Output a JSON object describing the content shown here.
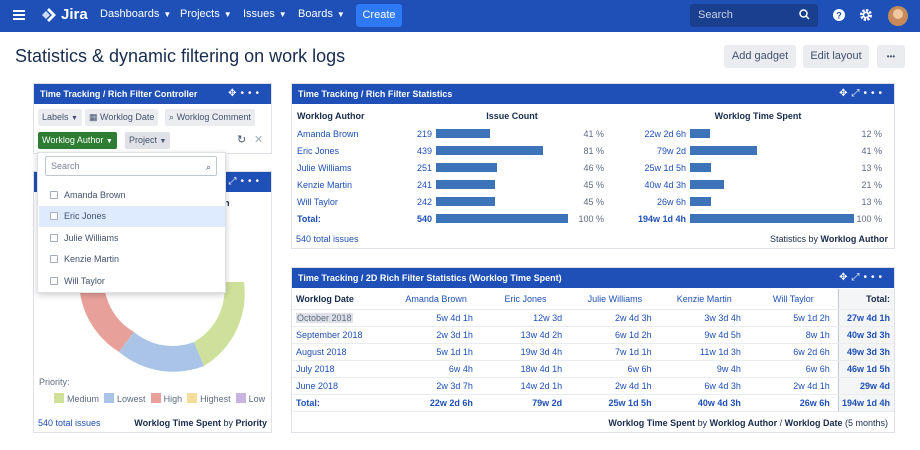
{
  "nav": {
    "logo_text": "Jira",
    "items": [
      {
        "label": "Dashboards"
      },
      {
        "label": "Projects"
      },
      {
        "label": "Issues"
      },
      {
        "label": "Boards"
      }
    ],
    "create_label": "Create",
    "search_placeholder": "Search"
  },
  "page": {
    "title": "Statistics & dynamic filtering on work logs",
    "add_gadget_label": "Add gadget",
    "edit_layout_label": "Edit layout",
    "more_label": "•••"
  },
  "controller": {
    "title": "Time Tracking / Rich Filter Controller",
    "chips": {
      "labels": "Labels",
      "worklog_date": "Worklog Date",
      "worklog_comment": "Worklog Comment",
      "worklog_author": "Worklog Author",
      "project": "Project"
    },
    "dropdown": {
      "search_placeholder": "Search",
      "items": [
        "Amanda Brown",
        "Eric Jones",
        "Julie Williams",
        "Kenzie Martin",
        "Will Taylor"
      ]
    }
  },
  "pie_gadget": {
    "header_fragment": "h",
    "legend_title": "Priority:",
    "legend": [
      {
        "label": "Medium",
        "color": "#cfe09a"
      },
      {
        "label": "Lowest",
        "color": "#a9c4e6"
      },
      {
        "label": "High",
        "color": "#e8a09a"
      },
      {
        "label": "Highest",
        "color": "#f5dc9a"
      },
      {
        "label": "Low",
        "color": "#c8b4e0"
      }
    ],
    "footer_left": "540 total issues",
    "footer_right_bold1": "Worklog Time Spent",
    "footer_right_by": " by ",
    "footer_right_bold2": "Priority"
  },
  "stats": {
    "title": "Time Tracking / Rich Filter Statistics",
    "col_author": "Worklog Author",
    "col_count": "Issue Count",
    "col_time": "Worklog Time Spent",
    "rows": [
      {
        "name": "Amanda Brown",
        "count": "219",
        "count_pct": "41 %",
        "count_frac": 0.41,
        "time": "22w 2d 6h",
        "time_pct": "12 %",
        "time_frac": 0.12
      },
      {
        "name": "Eric Jones",
        "count": "439",
        "count_pct": "81 %",
        "count_frac": 0.81,
        "time": "79w 2d",
        "time_pct": "41 %",
        "time_frac": 0.41
      },
      {
        "name": "Julie Williams",
        "count": "251",
        "count_pct": "46 %",
        "count_frac": 0.46,
        "time": "25w 1d 5h",
        "time_pct": "13 %",
        "time_frac": 0.13
      },
      {
        "name": "Kenzie Martin",
        "count": "241",
        "count_pct": "45 %",
        "count_frac": 0.45,
        "time": "40w 4d 3h",
        "time_pct": "21 %",
        "time_frac": 0.21
      },
      {
        "name": "Will Taylor",
        "count": "242",
        "count_pct": "45 %",
        "count_frac": 0.45,
        "time": "26w 6h",
        "time_pct": "13 %",
        "time_frac": 0.13
      }
    ],
    "total_label": "Total:",
    "total_count": "540",
    "total_count_pct": "100 %",
    "total_time": "194w 1d 4h",
    "total_time_pct": "100 %",
    "footer_left": "540 total issues",
    "footer_right_pre": "Statistics by ",
    "footer_right_bold": "Worklog Author"
  },
  "twod": {
    "title": "Time Tracking / 2D Rich Filter Statistics (Worklog Time Spent)",
    "corner": "Worklog Date",
    "columns": [
      "Amanda Brown",
      "Eric Jones",
      "Julie Williams",
      "Kenzie Martin",
      "Will Taylor"
    ],
    "total_header": "Total:",
    "rows": [
      {
        "label": "October 2018",
        "cells": [
          "5w 4d 1h",
          "12w 3d",
          "2w 4d 3h",
          "3w 3d 4h",
          "5w 1d 2h"
        ],
        "total": "27w 4d 1h"
      },
      {
        "label": "September 2018",
        "cells": [
          "2w 3d 1h",
          "13w 4d 2h",
          "6w 1d 2h",
          "9w 4d 5h",
          "8w 1h"
        ],
        "total": "40w 3d 3h"
      },
      {
        "label": "August 2018",
        "cells": [
          "5w 1d 1h",
          "19w 3d 4h",
          "7w 1d 1h",
          "11w 1d 3h",
          "6w 2d 6h"
        ],
        "total": "49w 3d 3h"
      },
      {
        "label": "July 2018",
        "cells": [
          "6w 4h",
          "18w 4d 1h",
          "6w 6h",
          "9w 4h",
          "6w 6h"
        ],
        "total": "46w 1d 5h"
      },
      {
        "label": "June 2018",
        "cells": [
          "2w 3d 7h",
          "14w 2d 1h",
          "2w 4d 1h",
          "6w 4d 3h",
          "2w 4d 1h"
        ],
        "total": "29w 4d"
      }
    ],
    "total_row_label": "Total:",
    "total_row": [
      "22w 2d 6h",
      "79w 2d",
      "25w 1d 5h",
      "40w 4d 3h",
      "26w 6h"
    ],
    "grand_total": "194w 1d 4h",
    "footer_b1": "Worklog Time Spent",
    "footer_by": " by ",
    "footer_b2": "Worklog Author",
    "footer_slash": " / ",
    "footer_b3": "Worklog Date",
    "footer_tail": " (5 months)"
  }
}
